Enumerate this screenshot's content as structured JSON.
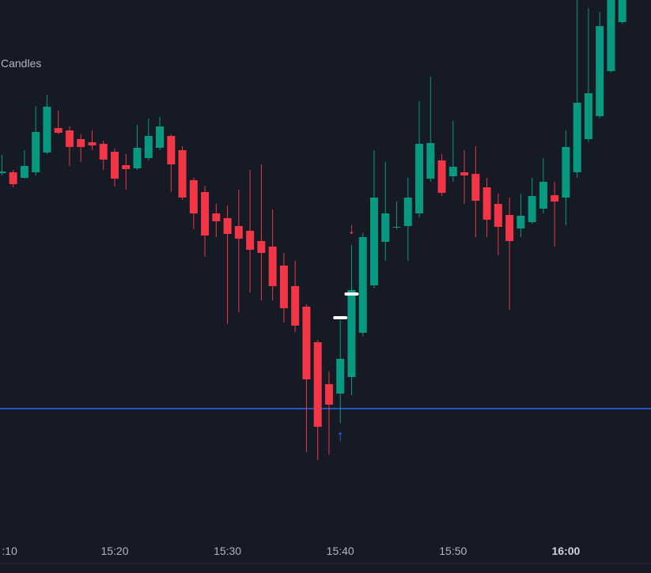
{
  "chart_data": {
    "type": "candlestick",
    "legend": "Candles",
    "x": [
      "15:10",
      "15:11",
      "15:12",
      "15:13",
      "15:14",
      "15:15",
      "15:16",
      "15:17",
      "15:18",
      "15:19",
      "15:20",
      "15:21",
      "15:22",
      "15:23",
      "15:24",
      "15:25",
      "15:26",
      "15:27",
      "15:28",
      "15:29",
      "15:30",
      "15:31",
      "15:32",
      "15:33",
      "15:34",
      "15:35",
      "15:36",
      "15:37",
      "15:38",
      "15:39",
      "15:40",
      "15:41",
      "15:42",
      "15:43",
      "15:44",
      "15:45",
      "15:46",
      "15:47",
      "15:48",
      "15:49",
      "15:50",
      "15:51",
      "15:52",
      "15:53",
      "15:54",
      "15:55",
      "15:56",
      "15:57",
      "15:58",
      "15:59",
      "16:00",
      "16:01",
      "16:02",
      "16:03",
      "16:04",
      "16:05"
    ],
    "open": [
      506,
      507,
      500,
      507,
      532,
      563,
      560,
      549,
      545,
      543,
      533,
      516,
      512,
      525,
      538,
      553,
      535,
      497,
      482,
      455,
      449,
      439,
      433,
      420,
      413,
      389,
      363,
      337,
      292,
      239,
      227,
      248,
      304,
      364,
      419,
      437,
      439,
      455,
      499,
      522,
      502,
      507,
      505,
      488,
      467,
      453,
      436,
      444,
      461,
      478,
      475,
      507,
      549,
      578,
      635,
      697
    ],
    "high": [
      529,
      510,
      535,
      590,
      605,
      585,
      565,
      555,
      560,
      547,
      537,
      530,
      567,
      575,
      577,
      555,
      540,
      500,
      490,
      467,
      465,
      485,
      510,
      517,
      460,
      405,
      395,
      340,
      295,
      255,
      320,
      415,
      430,
      535,
      520,
      470,
      500,
      597,
      628,
      530,
      572,
      535,
      540,
      500,
      480,
      475,
      480,
      500,
      525,
      495,
      560,
      725,
      715,
      710,
      725,
      725
    ],
    "low": [
      503,
      488,
      499,
      503,
      530,
      555,
      515,
      520,
      535,
      510,
      489,
      485,
      510,
      522,
      535,
      482,
      472,
      435,
      400,
      425,
      315,
      330,
      355,
      345,
      345,
      317,
      305,
      153,
      143,
      150,
      190,
      225,
      300,
      360,
      395,
      435,
      395,
      450,
      495,
      477,
      495,
      467,
      425,
      425,
      402,
      333,
      425,
      442,
      455,
      413,
      440,
      500,
      545,
      575,
      633,
      695
    ],
    "close": [
      508,
      492,
      515,
      558,
      590,
      557,
      539,
      539,
      541,
      523,
      499,
      511,
      538,
      553,
      565,
      517,
      475,
      455,
      427,
      445,
      429,
      423,
      409,
      405,
      363,
      335,
      313,
      245,
      185,
      213,
      271,
      358,
      425,
      475,
      455,
      438,
      475,
      543,
      544,
      481,
      514,
      503,
      471,
      447,
      438,
      420,
      452,
      477,
      495,
      470,
      539,
      595,
      607,
      692,
      725,
      725
    ],
    "up_color": "#089981",
    "down_color": "#f23645",
    "ylim": [
      0,
      725
    ],
    "xticks": [
      {
        "value": "15:10",
        "label": ":10"
      },
      {
        "value": "15:20",
        "label": "15:20"
      },
      {
        "value": "15:30",
        "label": "15:30"
      },
      {
        "value": "15:40",
        "label": "15:40"
      },
      {
        "value": "15:50",
        "label": "15:50"
      },
      {
        "value": "16:00",
        "label": "16:00",
        "bold": true
      }
    ],
    "hline": {
      "value": 208,
      "color": "#2962ff"
    },
    "arrows": [
      {
        "x": "15:41",
        "value": 435,
        "label": "↓",
        "color": "#f23645"
      },
      {
        "x": "15:40",
        "value": 173,
        "label": "↑",
        "color": "#2962ff"
      }
    ],
    "markers": [
      {
        "x": "15:40",
        "value": 323
      },
      {
        "x": "15:41",
        "value": 353
      }
    ]
  }
}
